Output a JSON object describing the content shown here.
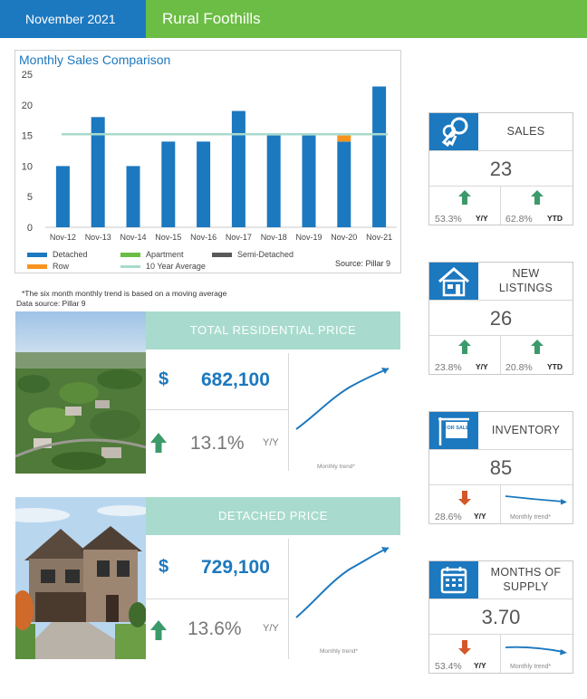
{
  "header": {
    "date": "November 2021",
    "area": "Rural Foothills"
  },
  "chart_data": {
    "type": "bar",
    "title": "Monthly Sales Comparison",
    "categories": [
      "Nov-12",
      "Nov-13",
      "Nov-14",
      "Nov-15",
      "Nov-16",
      "Nov-17",
      "Nov-18",
      "Nov-19",
      "Nov-20",
      "Nov-21"
    ],
    "series": [
      {
        "name": "Detached",
        "color": "#1c78bf",
        "values": [
          10,
          18,
          10,
          14,
          14,
          19,
          15,
          15,
          14,
          23
        ]
      },
      {
        "name": "Apartment",
        "color": "#6cbd45",
        "values": [
          0,
          0,
          0,
          0,
          0,
          0,
          0,
          0,
          0,
          0
        ]
      },
      {
        "name": "Semi-Detached",
        "color": "#595959",
        "values": [
          0,
          0,
          0,
          0,
          0,
          0,
          0,
          0,
          0,
          0
        ]
      },
      {
        "name": "Row",
        "color": "#f7941d",
        "values": [
          0,
          0,
          0,
          0,
          0,
          0,
          0,
          0,
          1,
          0
        ]
      }
    ],
    "line": {
      "name": "10 Year Average",
      "color": "#a8dbcd",
      "value": 15.2
    },
    "yticks": [
      0,
      5,
      10,
      15,
      20,
      25
    ],
    "ylim": [
      0,
      25
    ],
    "source": "Source: Pillar 9",
    "legend_position": "bottom"
  },
  "notes": {
    "trend_note": "*The six month monthly trend is based on a moving average",
    "data_source": "Data source: Pillar 9"
  },
  "total_residential": {
    "title": "TOTAL RESIDENTIAL PRICE",
    "currency": "$",
    "price": "682,100",
    "change": "13.1%",
    "change_label": "Y/Y",
    "trend_label": "Monthly trend*"
  },
  "detached": {
    "title": "DETACHED PRICE",
    "currency": "$",
    "price": "729,100",
    "change": "13.6%",
    "change_label": "Y/Y",
    "trend_label": "Monthly trend*"
  },
  "cards": {
    "sales": {
      "title": "SALES",
      "value": "23",
      "yy": "53.3%",
      "yy_label": "Y/Y",
      "ytd": "62.8%",
      "ytd_label": "YTD"
    },
    "new_listings": {
      "title_line1": "NEW",
      "title_line2": "LISTINGS",
      "value": "26",
      "yy": "23.8%",
      "yy_label": "Y/Y",
      "ytd": "20.8%",
      "ytd_label": "YTD"
    },
    "inventory": {
      "title": "INVENTORY",
      "value": "85",
      "yy": "28.6%",
      "yy_label": "Y/Y",
      "trend_label": "Monthly trend*",
      "sign_text": "FOR SALE"
    },
    "months_supply": {
      "title_line1": "MONTHS OF",
      "title_line2": "SUPPLY",
      "value": "3.70",
      "yy": "53.4%",
      "yy_label": "Y/Y",
      "trend_label": "Monthly trend*"
    }
  },
  "colors": {
    "blue": "#1c78bf",
    "green": "#6cbd45",
    "teal": "#a8dbcd",
    "up_arrow": "#3c9a6a",
    "down_arrow": "#d4572a"
  }
}
